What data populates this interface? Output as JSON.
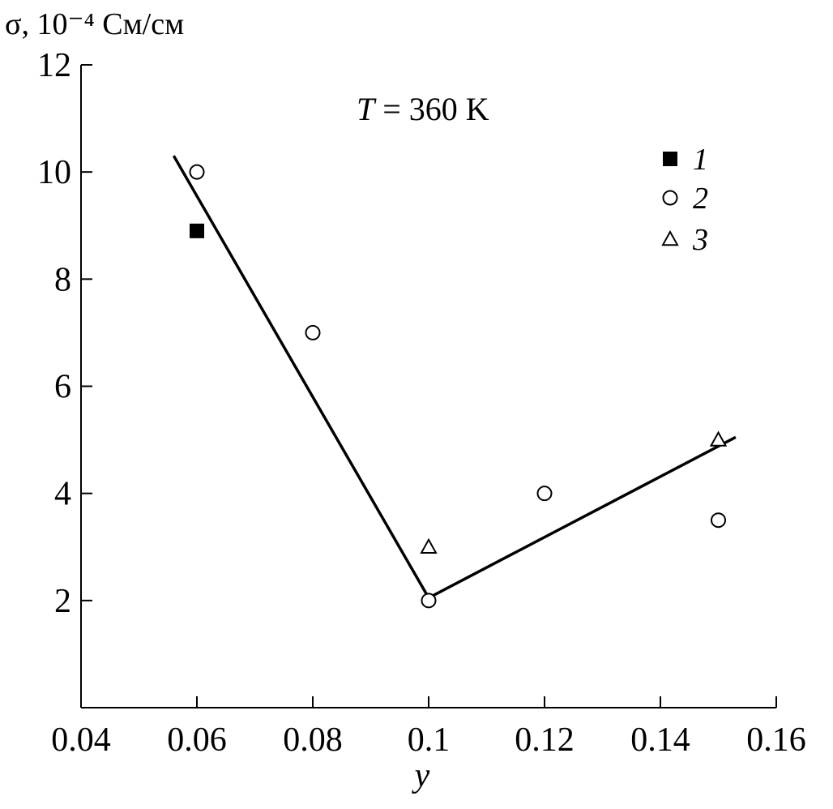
{
  "chart_data": {
    "type": "scatter",
    "title": "",
    "annotation": {
      "prefix": "T",
      "rest": " = 360 K"
    },
    "ylabel": "σ, 10⁻⁴ См/см",
    "xlabel": "y",
    "xlim": [
      0.04,
      0.16
    ],
    "ylim": [
      0,
      12
    ],
    "xticks": [
      0.04,
      0.06,
      0.08,
      0.1,
      0.12,
      0.14,
      0.16
    ],
    "xtick_labels": [
      "0.04",
      "0.06",
      "0.08",
      "0.1",
      "0.12",
      "0.14",
      "0.16"
    ],
    "yticks": [
      2,
      4,
      6,
      8,
      10,
      12
    ],
    "ytick_labels": [
      "2",
      "4",
      "6",
      "8",
      "10",
      "12"
    ],
    "grid": false,
    "legend_position": "top-right",
    "series": [
      {
        "name": "1",
        "marker": "filled-square",
        "x": [
          0.06
        ],
        "y": [
          8.9
        ]
      },
      {
        "name": "2",
        "marker": "open-circle",
        "x": [
          0.06,
          0.08,
          0.1,
          0.12,
          0.15
        ],
        "y": [
          10.0,
          7.0,
          2.0,
          4.0,
          3.5
        ]
      },
      {
        "name": "3",
        "marker": "open-triangle",
        "x": [
          0.1,
          0.15
        ],
        "y": [
          3.0,
          5.0
        ]
      }
    ],
    "fit_line": {
      "x": [
        0.056,
        0.1,
        0.153
      ],
      "y": [
        10.3,
        2.05,
        5.05
      ]
    }
  }
}
